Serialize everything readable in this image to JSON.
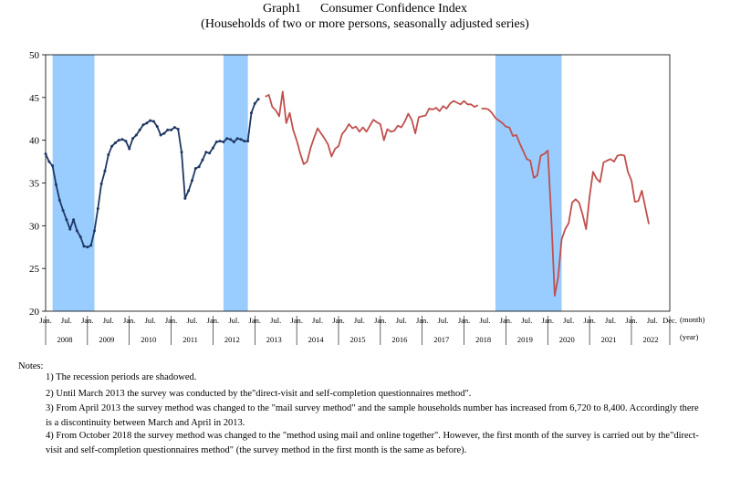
{
  "chart_data": {
    "type": "line",
    "title": "Graph1      Consumer Confidence Index",
    "subtitle": "(Households of two or more persons, seasonally adjusted series)",
    "xlabel": "",
    "ylabel": "",
    "ylim": [
      20,
      50
    ],
    "yticks": [
      20,
      25,
      30,
      35,
      40,
      45,
      50
    ],
    "month_labels": [
      "Jan.",
      "Jul.",
      "Jan.",
      "Jul.",
      "Jan.",
      "Jul.",
      "Jan.",
      "Jul.",
      "Jan.",
      "Jul.",
      "Jan.",
      "Jul.",
      "Jan.",
      "Jul.",
      "Jan.",
      "Jul.",
      "Jan.",
      "Jul.",
      "Jan.",
      "Jul.",
      "Jan.",
      "Jul.",
      "Jan.",
      "Jul.",
      "Jan.",
      "Jul.",
      "Jan.",
      "Jul.",
      "Jan.",
      "Jul.",
      "Dec."
    ],
    "years": [
      "2008",
      "2009",
      "2010",
      "2011",
      "2012",
      "2013",
      "2014",
      "2015",
      "2016",
      "2017",
      "2018",
      "2019",
      "2020",
      "2021",
      "2022"
    ],
    "x_unit": "(month)",
    "year_unit": "(year)",
    "grid": false,
    "recessions": [
      {
        "start": "2008-03",
        "end": "2009-03"
      },
      {
        "start": "2012-04",
        "end": "2012-11"
      },
      {
        "start": "2018-10",
        "end": "2020-05"
      }
    ],
    "series": [
      {
        "id": "mail",
        "style": "dark-blue line with point markers",
        "color": "#1f3864",
        "start": "2008-01",
        "values": [
          38.4,
          37.5,
          37.0,
          34.8,
          33.0,
          31.8,
          30.7,
          29.6,
          30.7,
          29.4,
          28.7,
          27.6,
          27.5,
          27.7,
          29.4,
          32.0,
          34.9,
          36.4,
          38.3,
          39.3,
          39.7,
          40.0,
          40.1,
          39.9,
          39.0,
          40.2,
          40.6,
          41.2,
          41.8,
          42.0,
          42.3,
          42.2,
          41.6,
          40.6,
          40.8,
          41.2,
          41.2,
          41.5,
          41.3,
          38.6,
          33.2,
          34.1,
          35.3,
          36.7,
          36.9,
          37.7,
          38.6,
          38.5,
          39.1,
          39.8,
          39.9,
          39.8,
          40.2,
          40.1,
          39.8,
          40.2,
          40.1,
          39.9,
          39.9,
          43.2,
          44.3,
          44.8
        ]
      },
      {
        "id": "mail-survey",
        "style": "red line",
        "color": "#c0504d",
        "start": "2013-04",
        "values": [
          45.1,
          45.3,
          43.9,
          43.5,
          42.8,
          45.7,
          42.0,
          43.2,
          41.2,
          40.0,
          38.5,
          37.2,
          37.5,
          39.1,
          40.3,
          41.4,
          40.8,
          40.2,
          39.5,
          38.1,
          39.0,
          39.3,
          40.7,
          41.2,
          41.9,
          41.4,
          41.6,
          41.0,
          41.5,
          41.0,
          41.7,
          42.4,
          42.1,
          41.9,
          40.0,
          41.3,
          41.0,
          41.1,
          41.7,
          41.5,
          42.2,
          43.1,
          42.4,
          40.8,
          42.7,
          42.8,
          42.9,
          43.7,
          43.6,
          43.8,
          43.4,
          44.0,
          43.7,
          44.3,
          44.6,
          44.4,
          44.2,
          44.6,
          44.2,
          44.2,
          43.9,
          44.1
        ]
      },
      {
        "id": "mail-and-online",
        "style": "red line",
        "color": "#c0504d",
        "start": "2018-06",
        "values": [
          43.7,
          43.7,
          43.6,
          43.2,
          42.6,
          42.3,
          42.0,
          41.6,
          41.5,
          40.5,
          40.6,
          39.6,
          38.7,
          37.8,
          37.6,
          35.6,
          35.9,
          38.2,
          38.4,
          38.8,
          31.1,
          21.8,
          24.0,
          28.4,
          29.6,
          30.3,
          32.7,
          33.1,
          32.7,
          31.3,
          29.6,
          33.4,
          36.3,
          35.5,
          35.1,
          37.4,
          37.6,
          37.8,
          37.5,
          38.2,
          38.3,
          38.2,
          36.3,
          35.3,
          32.8,
          32.9,
          34.1,
          32.1,
          30.2
        ]
      }
    ]
  },
  "notes": {
    "header": "Notes:",
    "items": [
      "1) The recession periods are shadowed.",
      "2) Until March 2013 the survey was conducted by the\"direct-visit and self-completion questionnaires method\".",
      "3) From April 2013 the survey method was changed to the \"mail survey method\" and the sample households number has increased from 6,720 to 8,400. Accordingly there is a discontinuity between March and April in 2013.",
      "4) From October 2018 the survey method was changed to the \"method using mail and online together\". However, the first month of the survey is carried out by the\"direct-visit and self-completion questionnaires method\" (the survey method in the first month is the same as before)."
    ]
  }
}
